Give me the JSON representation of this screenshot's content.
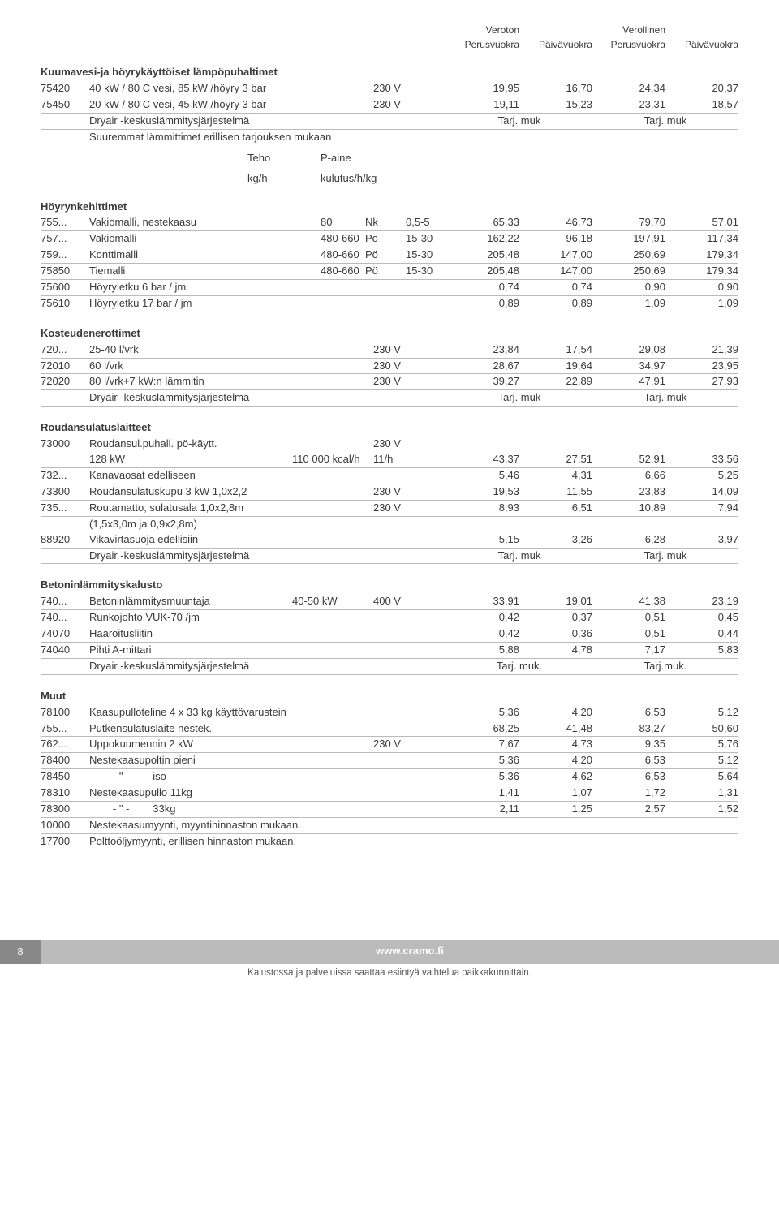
{
  "header": {
    "c1": "Veroton",
    "c2": "",
    "c3": "Verollinen",
    "c4": ""
  },
  "header2": {
    "c1": "Perusvuokra",
    "c2": "Päivävuokra",
    "c3": "Perusvuokra",
    "c4": "Päivävuokra"
  },
  "subhead": {
    "teho": "Teho",
    "teho2": "kg/h",
    "paine": "P-aine",
    "paine2": "kulutus/h/kg"
  },
  "sections": [
    {
      "title": "Kuumavesi-ja höyrykäyttöiset lämpöpuhaltimet",
      "rows": [
        {
          "code": "75420",
          "desc": "40 kW / 80 C vesi, 85 kW /höyry 3 bar",
          "ex1": "230 V",
          "n1": "19,95",
          "n2": "16,70",
          "n3": "24,34",
          "n4": "20,37"
        },
        {
          "code": "75450",
          "desc": "20 kW / 80 C vesi, 45 kW /höyry 3 bar",
          "ex1": "230 V",
          "n1": "19,11",
          "n2": "15,23",
          "n3": "23,31",
          "n4": "18,57"
        },
        {
          "code": "",
          "desc": "Dryair -keskuslämmitysjärjestelmä",
          "ex1": "",
          "wide1": "Tarj. muk",
          "wide2": "Tarj. muk",
          "type": "tarj"
        },
        {
          "code": "",
          "desc": "Suuremmat lämmittimet erillisen tarjouksen mukaan",
          "noborder": true
        }
      ]
    },
    {
      "title": "Höyrynkehittimet",
      "subhead": true,
      "rows": [
        {
          "code": "755...",
          "desc": "Vakiomalli, nestekaasu",
          "ex2": "80",
          "ex3": "Nk",
          "ex4": "0,5-5",
          "n1": "65,33",
          "n2": "46,73",
          "n3": "79,70",
          "n4": "57,01"
        },
        {
          "code": "757...",
          "desc": "Vakiomalli",
          "ex2": "480-660",
          "ex3": "Pö",
          "ex4": "15-30",
          "n1": "162,22",
          "n2": "96,18",
          "n3": "197,91",
          "n4": "117,34"
        },
        {
          "code": "759...",
          "desc": "Konttimalli",
          "ex2": "480-660",
          "ex3": "Pö",
          "ex4": "15-30",
          "n1": "205,48",
          "n2": "147,00",
          "n3": "250,69",
          "n4": "179,34"
        },
        {
          "code": "75850",
          "desc": "Tiemalli",
          "ex2": "480-660",
          "ex3": "Pö",
          "ex4": "15-30",
          "n1": "205,48",
          "n2": "147,00",
          "n3": "250,69",
          "n4": "179,34"
        },
        {
          "code": "75600",
          "desc": "Höyryletku 6 bar / jm",
          "n1": "0,74",
          "n2": "0,74",
          "n3": "0,90",
          "n4": "0,90"
        },
        {
          "code": "75610",
          "desc": "Höyryletku 17  bar / jm",
          "n1": "0,89",
          "n2": "0,89",
          "n3": "1,09",
          "n4": "1,09"
        }
      ]
    },
    {
      "title": "Kosteudenerottimet",
      "rows": [
        {
          "code": "720...",
          "desc": "25-40 l/vrk",
          "ex1": "230 V",
          "n1": "23,84",
          "n2": "17,54",
          "n3": "29,08",
          "n4": "21,39"
        },
        {
          "code": "72010",
          "desc": "60 l/vrk",
          "ex1": "230 V",
          "n1": "28,67",
          "n2": "19,64",
          "n3": "34,97",
          "n4": "23,95"
        },
        {
          "code": "72020",
          "desc": "80 l/vrk+7 kW:n lämmitin",
          "ex1": "230 V",
          "n1": "39,27",
          "n2": "22,89",
          "n3": "47,91",
          "n4": "27,93"
        },
        {
          "code": "",
          "desc": "Dryair -keskuslämmitysjärjestelmä",
          "wide1": "Tarj. muk",
          "wide2": "Tarj. muk",
          "type": "tarj"
        }
      ]
    },
    {
      "title": "Roudansulatuslaitteet",
      "rows": [
        {
          "code": "73000",
          "desc": "Roudansul.puhall. pö-käytt.",
          "ex1": "230 V",
          "noborder": true
        },
        {
          "code": "",
          "desc": "128 kW",
          "ex0": "110 000 kcal/h",
          "ex1": "11/h",
          "n1": "43,37",
          "n2": "27,51",
          "n3": "52,91",
          "n4": "33,56"
        },
        {
          "code": "732...",
          "desc": "Kanavaosat edelliseen",
          "n1": "5,46",
          "n2": "4,31",
          "n3": "6,66",
          "n4": "5,25"
        },
        {
          "code": "73300",
          "desc": "Roudansulatuskupu 3 kW  1,0x2,2",
          "ex1": "230 V",
          "n1": "19,53",
          "n2": "11,55",
          "n3": "23,83",
          "n4": "14,09"
        },
        {
          "code": "735...",
          "desc": "Routamatto, sulatusala 1,0x2,8m",
          "ex1": "230 V",
          "n1": "8,93",
          "n2": "6,51",
          "n3": "10,89",
          "n4": "7,94"
        },
        {
          "code": "",
          "desc": "(1,5x3,0m ja 0,9x2,8m)",
          "noborder": true
        },
        {
          "code": "88920",
          "desc": "Vikavirtasuoja edellisiin",
          "n1": "5,15",
          "n2": "3,26",
          "n3": "6,28",
          "n4": "3,97"
        },
        {
          "code": "",
          "desc": "Dryair -keskuslämmitysjärjestelmä",
          "wide1": "Tarj. muk",
          "wide2": "Tarj. muk",
          "type": "tarj"
        }
      ]
    },
    {
      "title": "Betoninlämmityskalusto",
      "rows": [
        {
          "code": "740...",
          "desc": "Betoninlämmitysmuuntaja",
          "ex0": "40-50 kW",
          "ex1": "400 V",
          "n1": "33,91",
          "n2": "19,01",
          "n3": "41,38",
          "n4": "23,19"
        },
        {
          "code": "740...",
          "desc": "Runkojohto VUK-70 /jm",
          "n1": "0,42",
          "n2": "0,37",
          "n3": "0,51",
          "n4": "0,45"
        },
        {
          "code": "74070",
          "desc": "Haaroitusliitin",
          "n1": "0,42",
          "n2": "0,36",
          "n3": "0,51",
          "n4": "0,44"
        },
        {
          "code": "74040",
          "desc": "Pihti A-mittari",
          "n1": "5,88",
          "n2": "4,78",
          "n3": "7,17",
          "n4": "5,83"
        },
        {
          "code": "",
          "desc": "Dryair -keskuslämmitysjärjestelmä",
          "wide1": "Tarj. muk.",
          "wide2": "Tarj.muk.",
          "type": "tarj"
        }
      ]
    },
    {
      "title": "Muut",
      "rows": [
        {
          "code": "78100",
          "desc": "Kaasupulloteline 4 x 33 kg käyttövarustein",
          "n1": "5,36",
          "n2": "4,20",
          "n3": "6,53",
          "n4": "5,12"
        },
        {
          "code": "755...",
          "desc": "Putkensulatuslaite nestek.",
          "n1": "68,25",
          "n2": "41,48",
          "n3": "83,27",
          "n4": "50,60"
        },
        {
          "code": "762...",
          "desc": "Uppokuumennin 2 kW",
          "ex1": "230 V",
          "n1": "7,67",
          "n2": "4,73",
          "n3": "9,35",
          "n4": "5,76"
        },
        {
          "code": "78400",
          "desc": "Nestekaasupoltin pieni",
          "n1": "5,36",
          "n2": "4,20",
          "n3": "6,53",
          "n4": "5,12"
        },
        {
          "code": "78450",
          "desc": "        - \" -        iso",
          "n1": "5,36",
          "n2": "4,62",
          "n3": "6,53",
          "n4": "5,64"
        },
        {
          "code": "78310",
          "desc": "Nestekaasupullo 11kg",
          "n1": "1,41",
          "n2": "1,07",
          "n3": "1,72",
          "n4": "1,31"
        },
        {
          "code": "78300",
          "desc": "        - \" -        33kg",
          "n1": "2,11",
          "n2": "1,25",
          "n3": "2,57",
          "n4": "1,52"
        },
        {
          "code": "10000",
          "desc": "Nestekaasumyynti, myyntihinnaston mukaan."
        },
        {
          "code": "17700",
          "desc": "Polttoöljymyynti, erillisen hinnaston mukaan."
        }
      ]
    }
  ],
  "footer": {
    "page": "8",
    "url": "www.cramo.fi",
    "note": "Kalustossa ja palveluissa saattaa esiintyä vaihtelua paikkakunnittain."
  }
}
